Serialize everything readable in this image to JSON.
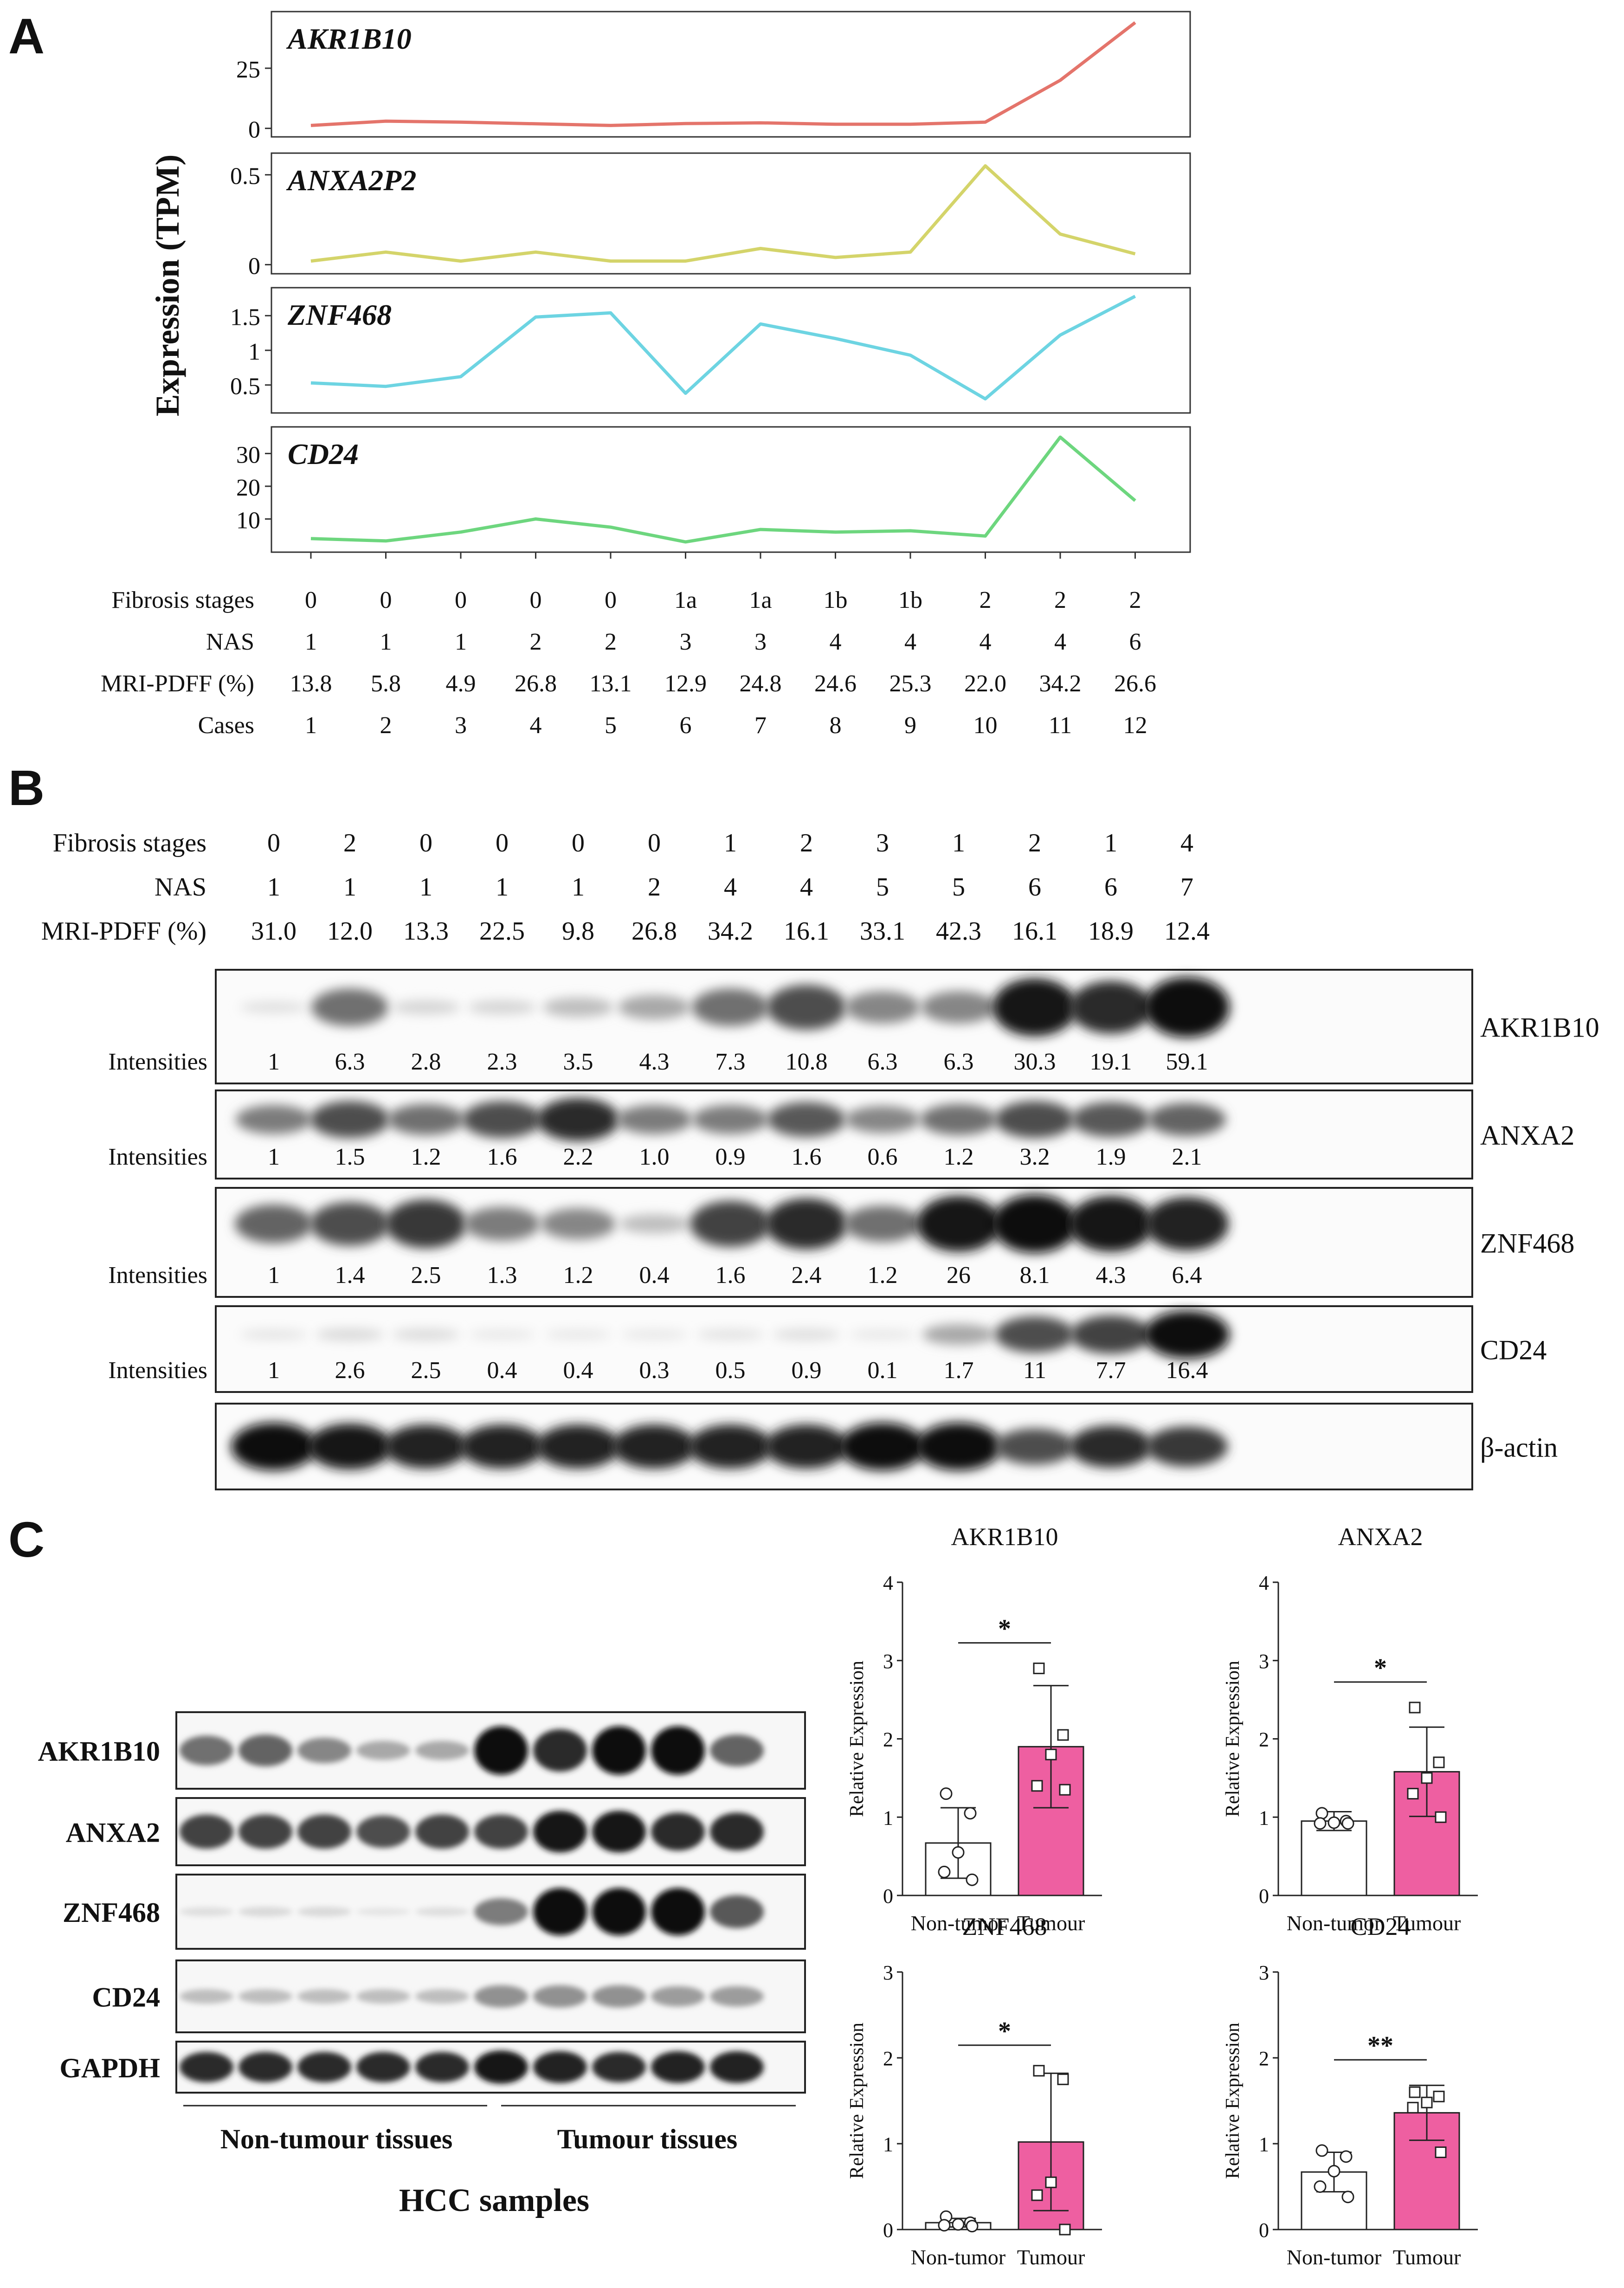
{
  "panel_labels": {
    "a": "A",
    "b": "B",
    "c": "C"
  },
  "panel_a": {
    "y_label": "Expression (TPM)",
    "row_labels": [
      "Fibrosis stages",
      "NAS",
      "MRI-PDFF (%)",
      "Cases"
    ],
    "table": {
      "fibrosis": [
        "0",
        "0",
        "0",
        "0",
        "0",
        "1a",
        "1a",
        "1b",
        "1b",
        "2",
        "2",
        "2"
      ],
      "nas": [
        "1",
        "1",
        "1",
        "2",
        "2",
        "3",
        "3",
        "4",
        "4",
        "4",
        "4",
        "6"
      ],
      "pdff": [
        "13.8",
        "5.8",
        "4.9",
        "26.8",
        "13.1",
        "12.9",
        "24.8",
        "24.6",
        "25.3",
        "22.0",
        "34.2",
        "26.6"
      ],
      "cases": [
        "1",
        "2",
        "3",
        "4",
        "5",
        "6",
        "7",
        "8",
        "9",
        "10",
        "11",
        "12"
      ]
    }
  },
  "panel_b": {
    "header_labels": [
      "Fibrosis stages",
      "NAS",
      "MRI-PDFF (%)"
    ],
    "fibrosis": [
      "0",
      "2",
      "0",
      "0",
      "0",
      "0",
      "1",
      "2",
      "3",
      "1",
      "2",
      "1",
      "4"
    ],
    "nas": [
      "1",
      "1",
      "1",
      "1",
      "1",
      "2",
      "4",
      "4",
      "5",
      "5",
      "6",
      "6",
      "7"
    ],
    "pdff": [
      "31.0",
      "12.0",
      "13.3",
      "22.5",
      "9.8",
      "26.8",
      "34.2",
      "16.1",
      "33.1",
      "42.3",
      "16.1",
      "18.9",
      "12.4"
    ],
    "intensities_label": "Intensities",
    "blots": [
      {
        "label": "AKR1B10",
        "intensities": [
          "1",
          "6.3",
          "2.8",
          "2.3",
          "3.5",
          "4.3",
          "7.3",
          "10.8",
          "6.3",
          "6.3",
          "30.3",
          "19.1",
          "59.1"
        ],
        "levels": [
          0.05,
          0.55,
          0.1,
          0.1,
          0.2,
          0.3,
          0.55,
          0.7,
          0.45,
          0.45,
          0.95,
          0.85,
          1.0
        ]
      },
      {
        "label": "ANXA2",
        "intensities": [
          "1",
          "1.5",
          "1.2",
          "1.6",
          "2.2",
          "1.0",
          "0.9",
          "1.6",
          "0.6",
          "1.2",
          "3.2",
          "1.9",
          "2.1"
        ],
        "levels": [
          0.5,
          0.7,
          0.55,
          0.7,
          0.85,
          0.5,
          0.5,
          0.65,
          0.45,
          0.55,
          0.7,
          0.65,
          0.6
        ]
      },
      {
        "label": "ZNF468",
        "intensities": [
          "1",
          "1.4",
          "2.5",
          "1.3",
          "1.2",
          "0.4",
          "1.6",
          "2.4",
          "1.2",
          "26",
          "8.1",
          "4.3",
          "6.4"
        ],
        "levels": [
          0.6,
          0.7,
          0.8,
          0.5,
          0.45,
          0.2,
          0.75,
          0.85,
          0.55,
          0.95,
          1.0,
          0.95,
          0.9
        ]
      },
      {
        "label": "CD24",
        "intensities": [
          "1",
          "2.6",
          "2.5",
          "0.4",
          "0.4",
          "0.3",
          "0.5",
          "0.9",
          "0.1",
          "1.7",
          "11",
          "7.7",
          "16.4"
        ],
        "levels": [
          0.03,
          0.08,
          0.07,
          0.02,
          0.02,
          0.02,
          0.04,
          0.06,
          0.02,
          0.3,
          0.7,
          0.75,
          1.0
        ]
      },
      {
        "label": "β-actin",
        "intensities": [],
        "levels": [
          1,
          0.95,
          0.9,
          0.9,
          0.9,
          0.9,
          0.9,
          0.9,
          1,
          1,
          0.7,
          0.85,
          0.8
        ]
      }
    ]
  },
  "panel_c": {
    "blot_labels": [
      "AKR1B10",
      "ANXA2",
      "ZNF468",
      "CD24",
      "GAPDH"
    ],
    "blot_levels": [
      [
        0.55,
        0.6,
        0.45,
        0.3,
        0.3,
        1,
        0.85,
        1,
        1,
        0.6
      ],
      [
        0.75,
        0.75,
        0.75,
        0.7,
        0.75,
        0.75,
        0.95,
        0.95,
        0.85,
        0.85
      ],
      [
        0.06,
        0.08,
        0.08,
        0.03,
        0.06,
        0.5,
        1,
        1,
        1,
        0.65
      ],
      [
        0.2,
        0.2,
        0.2,
        0.2,
        0.2,
        0.4,
        0.4,
        0.4,
        0.35,
        0.35
      ],
      [
        0.85,
        0.85,
        0.85,
        0.85,
        0.85,
        0.95,
        0.9,
        0.85,
        0.9,
        0.9
      ]
    ],
    "group_labels": [
      "Non-tumour tissues",
      "Tumour tissues"
    ],
    "caption": "HCC samples"
  },
  "chart_data": [
    {
      "type": "line",
      "title": "AKR1B10",
      "x": [
        1,
        2,
        3,
        4,
        5,
        6,
        7,
        8,
        9,
        10,
        11,
        12
      ],
      "values": [
        1.2,
        3.0,
        2.6,
        1.9,
        1.2,
        2.0,
        2.3,
        1.7,
        1.7,
        2.6,
        20.0,
        44.0
      ],
      "yticks": [
        0,
        25
      ],
      "ylim": [
        -2,
        47
      ],
      "color": "#e4746b"
    },
    {
      "type": "line",
      "title": "ANXA2P2",
      "x": [
        1,
        2,
        3,
        4,
        5,
        6,
        7,
        8,
        9,
        10,
        11,
        12
      ],
      "values": [
        0.02,
        0.07,
        0.02,
        0.07,
        0.02,
        0.02,
        0.09,
        0.04,
        0.07,
        0.55,
        0.17,
        0.06
      ],
      "yticks": [
        0.0,
        0.5
      ],
      "ylim": [
        -0.03,
        0.6
      ],
      "color": "#d4d46a"
    },
    {
      "type": "line",
      "title": "ZNF468",
      "x": [
        1,
        2,
        3,
        4,
        5,
        6,
        7,
        8,
        9,
        10,
        11,
        12
      ],
      "values": [
        0.53,
        0.48,
        0.62,
        1.48,
        1.54,
        0.38,
        1.38,
        1.17,
        0.93,
        0.3,
        1.22,
        1.78
      ],
      "yticks": [
        0.5,
        1.0,
        1.5
      ],
      "ylim": [
        0.15,
        1.85
      ],
      "color": "#6dd4e2"
    },
    {
      "type": "line",
      "title": "CD24",
      "x": [
        1,
        2,
        3,
        4,
        5,
        6,
        7,
        8,
        9,
        10,
        11,
        12
      ],
      "values": [
        4.0,
        3.3,
        6.0,
        10.0,
        7.5,
        3.0,
        6.8,
        6.0,
        6.4,
        4.8,
        35.0,
        15.6
      ],
      "yticks": [
        10,
        20,
        30
      ],
      "ylim": [
        1,
        37
      ],
      "color": "#6dd67e"
    },
    {
      "type": "bar",
      "title": "AKR1B10",
      "categories": [
        "Non-tumor",
        "Tumour"
      ],
      "ylabel": "Relative Expression",
      "means": [
        0.67,
        1.9
      ],
      "sd": [
        0.45,
        0.78
      ],
      "ylim": [
        0,
        4
      ],
      "yticks": [
        0,
        1,
        2,
        3,
        4
      ],
      "significance": "*",
      "points": [
        [
          1.3,
          1.05,
          0.55,
          0.3,
          0.2
        ],
        [
          2.9,
          2.05,
          1.8,
          1.4,
          1.35
        ]
      ]
    },
    {
      "type": "bar",
      "title": "ANXA2",
      "categories": [
        "Non-tumor",
        "Tumour"
      ],
      "ylabel": "Relative Expression",
      "means": [
        0.95,
        1.58
      ],
      "sd": [
        0.12,
        0.57
      ],
      "ylim": [
        0,
        4
      ],
      "yticks": [
        0,
        1,
        2,
        3,
        4
      ],
      "significance": "*",
      "points": [
        [
          1.05,
          0.95,
          0.93,
          0.92,
          0.92
        ],
        [
          2.4,
          1.7,
          1.5,
          1.3,
          1.0
        ]
      ]
    },
    {
      "type": "bar",
      "title": "ZNF468",
      "categories": [
        "Non-tumor",
        "Tumour"
      ],
      "ylabel": "Relative Expression",
      "means": [
        0.08,
        1.02
      ],
      "sd": [
        0.05,
        0.8
      ],
      "ylim": [
        0,
        3
      ],
      "yticks": [
        0,
        1,
        2,
        3
      ],
      "significance": "*",
      "points": [
        [
          0.15,
          0.08,
          0.06,
          0.05,
          0.04
        ],
        [
          1.85,
          1.75,
          0.55,
          0.4,
          0.0
        ]
      ]
    },
    {
      "type": "bar",
      "title": "CD24",
      "categories": [
        "Non-tumor",
        "Tumour"
      ],
      "ylabel": "Relative Expression",
      "means": [
        0.67,
        1.36
      ],
      "sd": [
        0.23,
        0.32
      ],
      "ylim": [
        0,
        3
      ],
      "yticks": [
        0,
        1,
        2,
        3
      ],
      "significance": "**",
      "points": [
        [
          0.92,
          0.85,
          0.68,
          0.5,
          0.38
        ],
        [
          1.6,
          1.55,
          1.48,
          1.42,
          0.9
        ]
      ]
    }
  ]
}
